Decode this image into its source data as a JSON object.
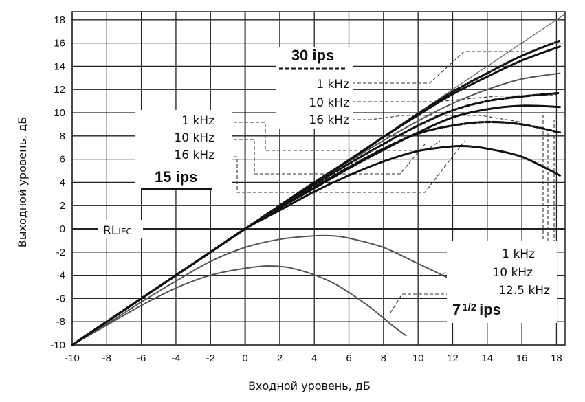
{
  "chart_data": {
    "type": "line",
    "xlabel": "Входной уровень, дБ",
    "ylabel": "Выходной уровень, дБ",
    "xlim": [
      -10,
      18.5
    ],
    "ylim": [
      -10,
      18.7
    ],
    "xticks": [
      -10,
      -8,
      -6,
      -4,
      -2,
      0,
      2,
      4,
      6,
      8,
      10,
      12,
      14,
      16,
      18
    ],
    "yticks": [
      -10,
      -8,
      -6,
      -4,
      -2,
      0,
      2,
      4,
      6,
      8,
      10,
      12,
      14,
      16,
      18
    ],
    "grid": true,
    "reference_line": {
      "label": "RL",
      "label_sub": "IEC",
      "y": 0
    },
    "series": [
      {
        "group": "30 ips",
        "name": "1 kHz",
        "style": "thick-dashed",
        "x": [
          -10,
          -6,
          -2,
          0,
          2,
          4,
          6,
          8,
          10,
          12,
          14,
          16,
          18.2
        ],
        "y": [
          -10,
          -6,
          -2,
          0,
          2,
          4,
          5.9,
          7.9,
          9.9,
          11.8,
          13.4,
          14.9,
          16.2
        ]
      },
      {
        "group": "30 ips",
        "name": "10 kHz",
        "style": "thick-dashed",
        "x": [
          -10,
          -6,
          -2,
          0,
          2,
          4,
          6,
          8,
          10,
          12,
          14,
          16,
          18.2
        ],
        "y": [
          -10,
          -6,
          -2,
          0,
          1.9,
          3.8,
          5.6,
          7.3,
          8.9,
          10.2,
          11.0,
          11.4,
          11.7
        ]
      },
      {
        "group": "30 ips",
        "name": "16 kHz",
        "style": "thick-dashed",
        "x": [
          -10,
          -6,
          -2,
          0,
          2,
          4,
          6,
          8,
          10,
          12,
          14,
          16,
          18.2
        ],
        "y": [
          -10,
          -6,
          -2,
          0,
          1.8,
          3.6,
          5.3,
          6.9,
          8.2,
          8.9,
          9.2,
          9.0,
          8.3
        ]
      },
      {
        "group": "15 ips",
        "name": "1 kHz",
        "style": "thick-solid",
        "x": [
          -10,
          -6,
          -2,
          0,
          2,
          4,
          6,
          8,
          10,
          12,
          14,
          16,
          18.2
        ],
        "y": [
          -10,
          -6,
          -2,
          0,
          2,
          4,
          5.9,
          7.9,
          9.8,
          11.6,
          13.1,
          14.5,
          15.7
        ]
      },
      {
        "group": "15 ips",
        "name": "10 kHz",
        "style": "thick-solid",
        "x": [
          -10,
          -6,
          -2,
          0,
          2,
          4,
          6,
          8,
          10,
          12,
          14,
          16,
          18.2
        ],
        "y": [
          -10,
          -6,
          -2,
          0,
          1.8,
          3.5,
          5.2,
          6.8,
          8.3,
          9.6,
          10.3,
          10.6,
          10.5
        ]
      },
      {
        "group": "15 ips",
        "name": "16 kHz",
        "style": "thick-solid",
        "x": [
          -10,
          -6,
          -2,
          0,
          2,
          4,
          6,
          8,
          10,
          12,
          13,
          14,
          16,
          18.2
        ],
        "y": [
          -10,
          -6,
          -2,
          0,
          1.6,
          3.2,
          4.6,
          5.8,
          6.7,
          7.1,
          7.1,
          6.9,
          6.2,
          4.6
        ]
      },
      {
        "group": "7 1/2 ips",
        "name": "1 kHz",
        "style": "thin-solid",
        "x": [
          -10,
          -6,
          -2,
          0,
          2,
          4,
          6,
          8,
          10,
          12,
          14,
          16,
          18.2
        ],
        "y": [
          -10,
          -6,
          -2,
          0,
          2,
          3.9,
          5.8,
          7.6,
          9.3,
          10.8,
          12.0,
          12.9,
          13.4
        ]
      },
      {
        "group": "7 1/2 ips",
        "name": "10 kHz",
        "style": "thin-solid",
        "x": [
          -10,
          -8,
          -6,
          -4,
          -2,
          0,
          2,
          4,
          5,
          6,
          8,
          10,
          12.4
        ],
        "y": [
          -10,
          -8.2,
          -6.3,
          -4.5,
          -2.8,
          -1.6,
          -0.9,
          -0.6,
          -0.6,
          -0.8,
          -1.6,
          -3.0,
          -4.7
        ]
      },
      {
        "group": "7 1/2 ips",
        "name": "12.5 kHz",
        "style": "thin-solid",
        "x": [
          -10,
          -8,
          -6,
          -4,
          -2,
          0,
          1.5,
          3,
          5,
          7,
          8.5,
          9.3
        ],
        "y": [
          -10,
          -8.3,
          -6.6,
          -5.1,
          -4.0,
          -3.4,
          -3.2,
          -3.5,
          -4.6,
          -6.5,
          -8.3,
          -9.2
        ]
      }
    ],
    "labels": {
      "speed_30": "30 ips",
      "speed_15": "15 ips",
      "speed_7": "7",
      "speed_7_frac": "1/2",
      "speed_7_unit": "ips",
      "f1": "1 kHz",
      "f10": "10 kHz",
      "f16": "16 kHz",
      "f125": "12.5 kHz"
    }
  }
}
